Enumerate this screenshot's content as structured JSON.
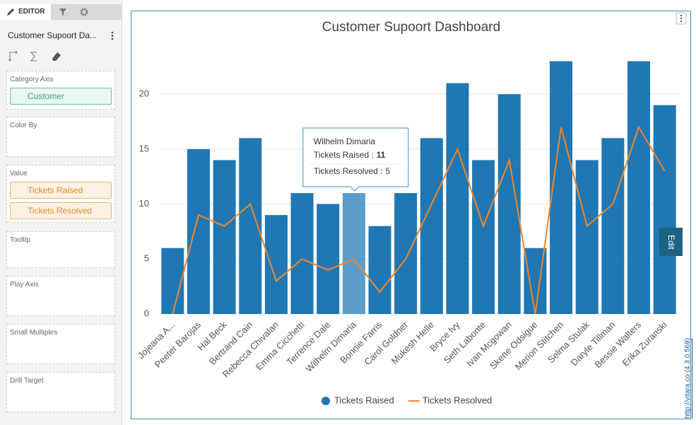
{
  "sidebar": {
    "tab": "EDITOR",
    "title": "Customer Supoort Da...",
    "sections": [
      {
        "label": "Category Axis",
        "items": [
          "Customer"
        ]
      },
      {
        "label": "Color By",
        "items": []
      },
      {
        "label": "Value",
        "items": [
          "Tickets Raised",
          "Tickets Resolved"
        ]
      },
      {
        "label": "Tooltip",
        "items": []
      },
      {
        "label": "Play Axis",
        "items": []
      },
      {
        "label": "Small Multiples",
        "items": []
      },
      {
        "label": "Drill Target",
        "items": []
      }
    ]
  },
  "edit_button": "Edit",
  "watermark": "http://vitara.co (4.3.0.569)",
  "chart_data": {
    "type": "bar-line",
    "title": "Customer Supoort Dashboard",
    "categories": [
      "Jojeana A...",
      "Peeter Barojas",
      "Hal Beck",
      "Bertrand Cain",
      "Rebecca Chivalan",
      "Emma Cicchetti",
      "Terrence Dale",
      "Wilhelm Dimaria",
      "Bonnie Farris",
      "Carol Goldner",
      "Mukesh Helle",
      "Bryce Ivy",
      "Seth Labonte",
      "Ivan Mcgowan",
      "Skene Odsigue",
      "Merion Stitchen",
      "Selma Stulak",
      "Daryle Tillman",
      "Bessie Walters",
      "Erika Zuranski"
    ],
    "series": [
      {
        "name": "Tickets Raised",
        "type": "bar",
        "color": "#1f77b4",
        "values": [
          6,
          15,
          14,
          16,
          9,
          11,
          10,
          11,
          8,
          11,
          16,
          21,
          14,
          20,
          6,
          23,
          14,
          16,
          23,
          19
        ]
      },
      {
        "name": "Tickets Resolved",
        "type": "line",
        "color": "#f0862a",
        "values": [
          0,
          9,
          8,
          10,
          3,
          5,
          4,
          5,
          2,
          5,
          10,
          15,
          8,
          14,
          0,
          17,
          8,
          10,
          17,
          13
        ]
      }
    ],
    "ylim": [
      0,
      24
    ],
    "yticks": [
      0,
      5,
      10,
      15,
      20
    ],
    "grid": true,
    "tooltip": {
      "category": "Wilhelm Dimaria",
      "rows": [
        {
          "label": "Tickets Raised :",
          "value": 11
        },
        {
          "label": "Tickets Resolved :",
          "value": 5
        }
      ]
    }
  }
}
